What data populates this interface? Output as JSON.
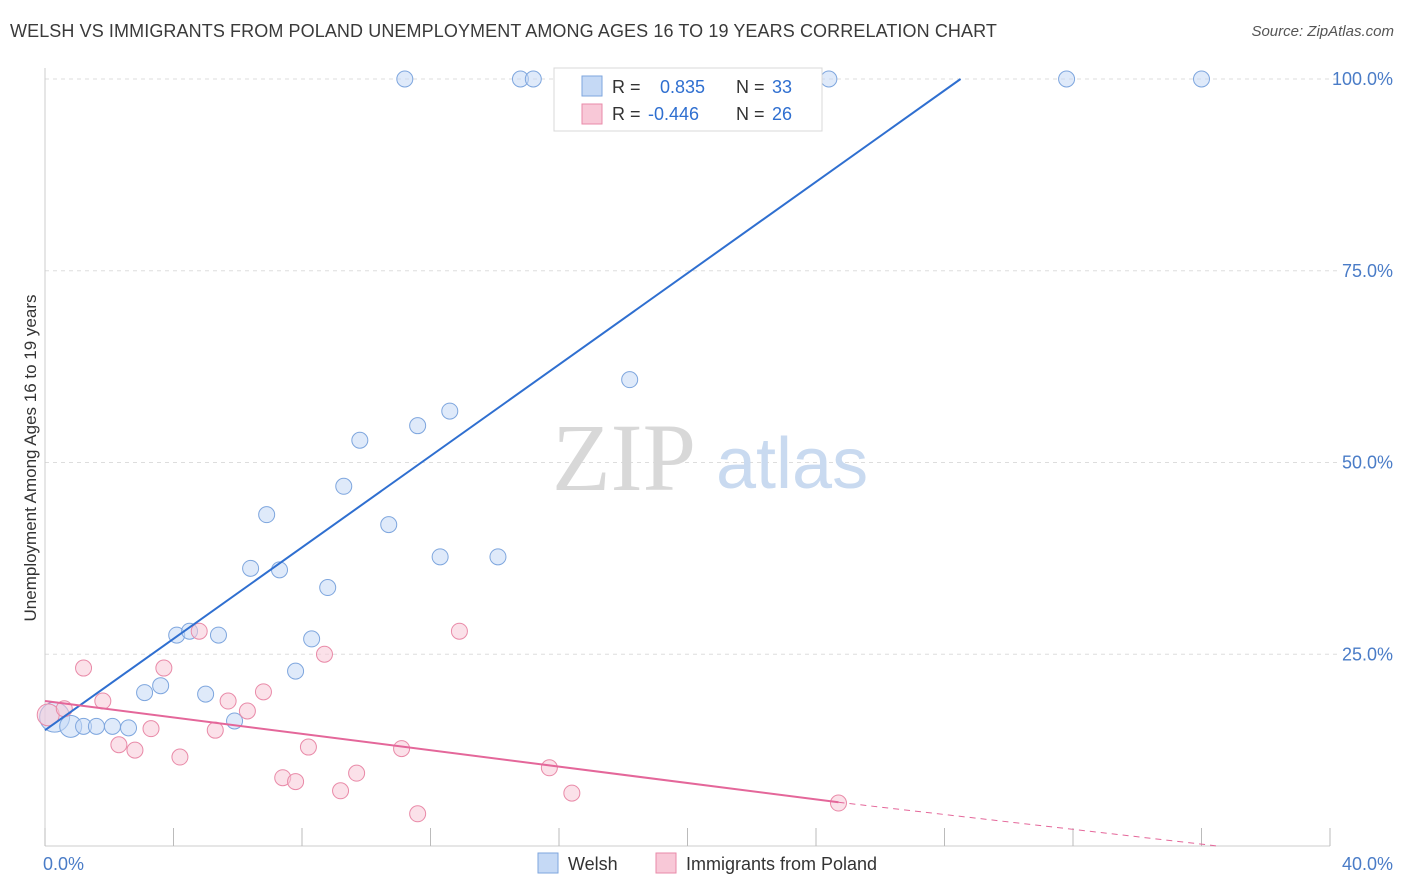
{
  "title": "WELSH VS IMMIGRANTS FROM POLAND UNEMPLOYMENT AMONG AGES 16 TO 19 YEARS CORRELATION CHART",
  "source": "Source: ZipAtlas.com",
  "watermark": {
    "zip": "ZIP",
    "atlas": "atlas"
  },
  "colors": {
    "welsh_fill": "#c5d9f5",
    "welsh_stroke": "#7ea6de",
    "welsh_line": "#2f6fd0",
    "poland_fill": "#f8c8d7",
    "poland_stroke": "#e98aa8",
    "poland_line": "#e4679a",
    "axis_text": "#4a7cc7",
    "grid": "#dddddd"
  },
  "stats_legend": [
    {
      "r_label": "R =",
      "r_value": "0.835",
      "n_label": "N =",
      "n_value": "33"
    },
    {
      "r_label": "R =",
      "r_value": "-0.446",
      "n_label": "N =",
      "n_value": "26"
    }
  ],
  "chart_data": {
    "type": "scatter",
    "title": "WELSH VS IMMIGRANTS FROM POLAND UNEMPLOYMENT AMONG AGES 16 TO 19 YEARS CORRELATION CHART",
    "xlabel": "",
    "ylabel": "Unemployment Among Ages 16 to 19 years",
    "xlim": [
      0,
      40
    ],
    "ylim": [
      0,
      105
    ],
    "x_tick_labels": [
      "0.0%",
      "40.0%"
    ],
    "y_ticks": [
      25,
      50,
      75,
      100
    ],
    "y_tick_labels": [
      "25.0%",
      "50.0%",
      "75.0%",
      "100.0%"
    ],
    "grid": true,
    "legend_position": "bottom-center",
    "series": [
      {
        "name": "Welsh",
        "points": [
          {
            "x": 0.3,
            "y": 16.8,
            "size": 3
          },
          {
            "x": 0.8,
            "y": 15.6,
            "size": 2
          },
          {
            "x": 1.2,
            "y": 15.6,
            "size": 1
          },
          {
            "x": 1.6,
            "y": 15.6,
            "size": 1
          },
          {
            "x": 2.1,
            "y": 15.6,
            "size": 1
          },
          {
            "x": 2.6,
            "y": 15.4,
            "size": 1
          },
          {
            "x": 3.1,
            "y": 20.0,
            "size": 1
          },
          {
            "x": 3.6,
            "y": 20.9,
            "size": 1
          },
          {
            "x": 4.1,
            "y": 27.5,
            "size": 1
          },
          {
            "x": 4.5,
            "y": 28.0,
            "size": 1
          },
          {
            "x": 5.0,
            "y": 19.8,
            "size": 1
          },
          {
            "x": 5.4,
            "y": 27.5,
            "size": 1
          },
          {
            "x": 5.9,
            "y": 16.3,
            "size": 1
          },
          {
            "x": 6.4,
            "y": 36.2,
            "size": 1
          },
          {
            "x": 6.9,
            "y": 43.2,
            "size": 1
          },
          {
            "x": 7.3,
            "y": 36.0,
            "size": 1
          },
          {
            "x": 7.8,
            "y": 22.8,
            "size": 1
          },
          {
            "x": 8.3,
            "y": 27.0,
            "size": 1
          },
          {
            "x": 8.8,
            "y": 33.7,
            "size": 1
          },
          {
            "x": 9.3,
            "y": 46.9,
            "size": 1
          },
          {
            "x": 9.8,
            "y": 52.9,
            "size": 1
          },
          {
            "x": 10.7,
            "y": 41.9,
            "size": 1
          },
          {
            "x": 11.2,
            "y": 100.0,
            "size": 1
          },
          {
            "x": 11.6,
            "y": 54.8,
            "size": 1
          },
          {
            "x": 12.3,
            "y": 37.7,
            "size": 1
          },
          {
            "x": 12.6,
            "y": 56.7,
            "size": 1
          },
          {
            "x": 14.1,
            "y": 37.7,
            "size": 1
          },
          {
            "x": 14.8,
            "y": 100.0,
            "size": 1
          },
          {
            "x": 15.2,
            "y": 100.0,
            "size": 1
          },
          {
            "x": 18.2,
            "y": 60.8,
            "size": 1
          },
          {
            "x": 24.4,
            "y": 100.0,
            "size": 1
          },
          {
            "x": 31.8,
            "y": 100.0,
            "size": 1
          },
          {
            "x": 36.0,
            "y": 100.0,
            "size": 1
          }
        ],
        "trend": {
          "x": [
            0.0,
            28.5
          ],
          "y": [
            15.1,
            100.0
          ]
        }
      },
      {
        "name": "Immigrants from Poland",
        "points": [
          {
            "x": 0.1,
            "y": 17.1,
            "size": 2
          },
          {
            "x": 0.6,
            "y": 17.9,
            "size": 1
          },
          {
            "x": 1.2,
            "y": 23.2,
            "size": 1
          },
          {
            "x": 1.8,
            "y": 18.9,
            "size": 1
          },
          {
            "x": 2.3,
            "y": 13.2,
            "size": 1
          },
          {
            "x": 2.8,
            "y": 12.5,
            "size": 1
          },
          {
            "x": 3.3,
            "y": 15.3,
            "size": 1
          },
          {
            "x": 3.7,
            "y": 23.2,
            "size": 1
          },
          {
            "x": 4.2,
            "y": 11.6,
            "size": 1
          },
          {
            "x": 4.8,
            "y": 28.0,
            "size": 1
          },
          {
            "x": 5.3,
            "y": 15.1,
            "size": 1
          },
          {
            "x": 5.7,
            "y": 18.9,
            "size": 1
          },
          {
            "x": 6.3,
            "y": 17.6,
            "size": 1
          },
          {
            "x": 6.8,
            "y": 20.1,
            "size": 1
          },
          {
            "x": 7.4,
            "y": 8.9,
            "size": 1
          },
          {
            "x": 7.8,
            "y": 8.4,
            "size": 1
          },
          {
            "x": 8.2,
            "y": 12.9,
            "size": 1
          },
          {
            "x": 8.7,
            "y": 25.0,
            "size": 1
          },
          {
            "x": 9.2,
            "y": 7.2,
            "size": 1
          },
          {
            "x": 9.7,
            "y": 9.5,
            "size": 1
          },
          {
            "x": 11.1,
            "y": 12.7,
            "size": 1
          },
          {
            "x": 11.6,
            "y": 4.2,
            "size": 1
          },
          {
            "x": 12.9,
            "y": 28.0,
            "size": 1
          },
          {
            "x": 15.7,
            "y": 10.2,
            "size": 1
          },
          {
            "x": 16.4,
            "y": 6.9,
            "size": 1
          },
          {
            "x": 24.7,
            "y": 5.6,
            "size": 1
          }
        ],
        "trend": {
          "x": [
            0.0,
            24.7
          ],
          "y": [
            18.9,
            5.7
          ]
        },
        "trend_dashed": {
          "x": [
            24.7,
            36.5
          ],
          "y": [
            5.7,
            0.0
          ]
        }
      }
    ]
  }
}
